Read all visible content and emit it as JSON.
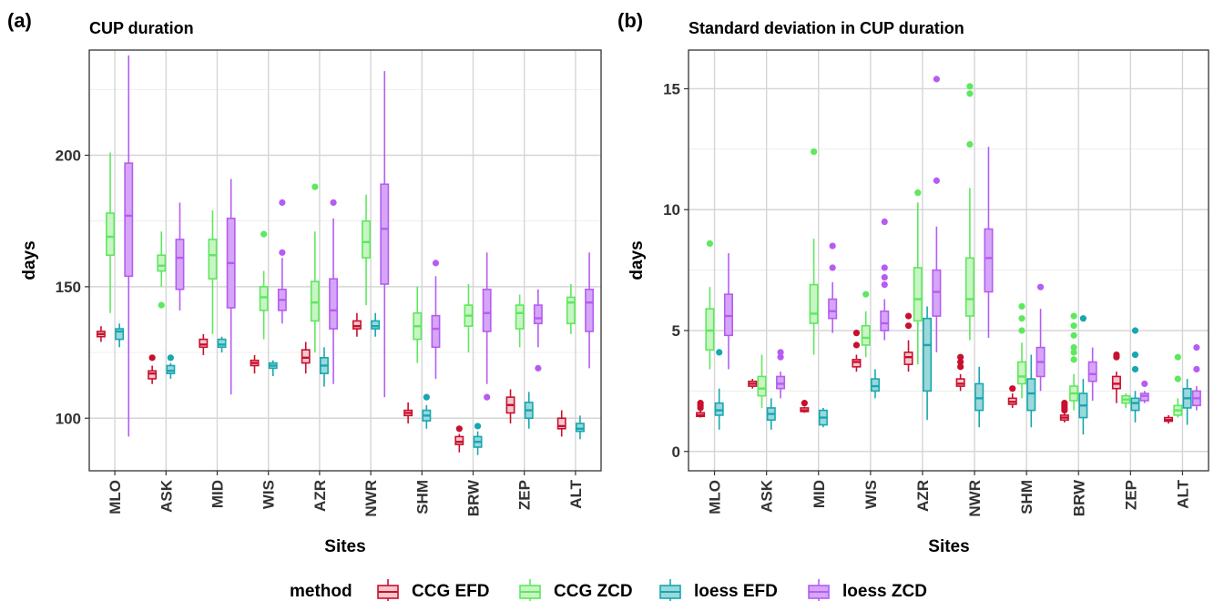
{
  "legend": {
    "title": "method",
    "items": [
      {
        "label": "CCG EFD",
        "stroke": "#c8102e",
        "fill": "#f3c7cd"
      },
      {
        "label": "CCG ZCD",
        "stroke": "#5ee85e",
        "fill": "#c8f5c3"
      },
      {
        "label": "loess EFD",
        "stroke": "#17a7b0",
        "fill": "#9ad8db"
      },
      {
        "label": "loess ZCD",
        "stroke": "#b65cf2",
        "fill": "#d5a6f7"
      }
    ]
  },
  "chart_data": [
    {
      "type": "box",
      "panel_label": "(a)",
      "title": "CUP duration",
      "xlabel": "Sites",
      "ylabel": "days",
      "ylim": [
        80,
        240
      ],
      "yticks": [
        100,
        150,
        200
      ],
      "grid": true,
      "categories": [
        "MLO",
        "ASK",
        "MID",
        "WIS",
        "AZR",
        "NWR",
        "SHM",
        "BRW",
        "ZEP",
        "ALT"
      ],
      "series": [
        {
          "name": "CCG EFD",
          "boxes": [
            {
              "min": 129,
              "q1": 131,
              "median": 132,
              "q3": 133,
              "max": 135,
              "outliers": []
            },
            {
              "min": 113,
              "q1": 115,
              "median": 117,
              "q3": 118,
              "max": 120,
              "outliers": [
                123
              ]
            },
            {
              "min": 124,
              "q1": 127,
              "median": 128,
              "q3": 130,
              "max": 132,
              "outliers": []
            },
            {
              "min": 117,
              "q1": 120,
              "median": 121,
              "q3": 122,
              "max": 124,
              "outliers": []
            },
            {
              "min": 117,
              "q1": 121,
              "median": 123,
              "q3": 126,
              "max": 129,
              "outliers": []
            },
            {
              "min": 131,
              "q1": 134,
              "median": 135,
              "q3": 137,
              "max": 140,
              "outliers": []
            },
            {
              "min": 98,
              "q1": 101,
              "median": 102,
              "q3": 103,
              "max": 106,
              "outliers": []
            },
            {
              "min": 87,
              "q1": 90,
              "median": 91,
              "q3": 93,
              "max": 94,
              "outliers": [
                96
              ]
            },
            {
              "min": 98,
              "q1": 102,
              "median": 105,
              "q3": 108,
              "max": 111,
              "outliers": []
            },
            {
              "min": 93,
              "q1": 96,
              "median": 97,
              "q3": 100,
              "max": 103,
              "outliers": []
            }
          ]
        },
        {
          "name": "CCG ZCD",
          "boxes": [
            {
              "min": 140,
              "q1": 162,
              "median": 169,
              "q3": 178,
              "max": 201,
              "outliers": []
            },
            {
              "min": 150,
              "q1": 156,
              "median": 158,
              "q3": 162,
              "max": 171,
              "outliers": [
                143
              ]
            },
            {
              "min": 132,
              "q1": 153,
              "median": 162,
              "q3": 168,
              "max": 179,
              "outliers": []
            },
            {
              "min": 130,
              "q1": 141,
              "median": 146,
              "q3": 150,
              "max": 156,
              "outliers": [
                170
              ]
            },
            {
              "min": 125,
              "q1": 137,
              "median": 144,
              "q3": 152,
              "max": 171,
              "outliers": [
                188
              ]
            },
            {
              "min": 143,
              "q1": 161,
              "median": 167,
              "q3": 175,
              "max": 185,
              "outliers": []
            },
            {
              "min": 121,
              "q1": 130,
              "median": 135,
              "q3": 140,
              "max": 150,
              "outliers": []
            },
            {
              "min": 125,
              "q1": 135,
              "median": 139,
              "q3": 143,
              "max": 151,
              "outliers": []
            },
            {
              "min": 127,
              "q1": 134,
              "median": 140,
              "q3": 143,
              "max": 147,
              "outliers": []
            },
            {
              "min": 132,
              "q1": 136,
              "median": 144,
              "q3": 146,
              "max": 151,
              "outliers": []
            }
          ]
        },
        {
          "name": "loess EFD",
          "boxes": [
            {
              "min": 127,
              "q1": 130,
              "median": 133,
              "q3": 134,
              "max": 136,
              "outliers": []
            },
            {
              "min": 115,
              "q1": 117,
              "median": 118,
              "q3": 120,
              "max": 121,
              "outliers": [
                123
              ]
            },
            {
              "min": 125,
              "q1": 127,
              "median": 128,
              "q3": 130,
              "max": 131,
              "outliers": []
            },
            {
              "min": 116,
              "q1": 119,
              "median": 120,
              "q3": 121,
              "max": 122,
              "outliers": []
            },
            {
              "min": 112,
              "q1": 117,
              "median": 120,
              "q3": 123,
              "max": 127,
              "outliers": []
            },
            {
              "min": 131,
              "q1": 134,
              "median": 135,
              "q3": 137,
              "max": 140,
              "outliers": []
            },
            {
              "min": 96,
              "q1": 99,
              "median": 101,
              "q3": 103,
              "max": 105,
              "outliers": [
                108
              ]
            },
            {
              "min": 86,
              "q1": 89,
              "median": 91,
              "q3": 93,
              "max": 95,
              "outliers": [
                97
              ]
            },
            {
              "min": 96,
              "q1": 100,
              "median": 103,
              "q3": 106,
              "max": 110,
              "outliers": []
            },
            {
              "min": 92,
              "q1": 95,
              "median": 96,
              "q3": 98,
              "max": 101,
              "outliers": []
            }
          ]
        },
        {
          "name": "loess ZCD",
          "boxes": [
            {
              "min": 93,
              "q1": 154,
              "median": 177,
              "q3": 197,
              "max": 238,
              "outliers": []
            },
            {
              "min": 141,
              "q1": 149,
              "median": 161,
              "q3": 168,
              "max": 182,
              "outliers": []
            },
            {
              "min": 109,
              "q1": 142,
              "median": 159,
              "q3": 176,
              "max": 191,
              "outliers": []
            },
            {
              "min": 136,
              "q1": 141,
              "median": 145,
              "q3": 149,
              "max": 161,
              "outliers": [
                163,
                182
              ]
            },
            {
              "min": 113,
              "q1": 134,
              "median": 141,
              "q3": 153,
              "max": 176,
              "outliers": [
                182
              ]
            },
            {
              "min": 108,
              "q1": 151,
              "median": 172,
              "q3": 189,
              "max": 232,
              "outliers": []
            },
            {
              "min": 115,
              "q1": 127,
              "median": 134,
              "q3": 139,
              "max": 154,
              "outliers": [
                159
              ]
            },
            {
              "min": 113,
              "q1": 133,
              "median": 140,
              "q3": 149,
              "max": 163,
              "outliers": [
                108
              ]
            },
            {
              "min": 127,
              "q1": 136,
              "median": 138,
              "q3": 143,
              "max": 149,
              "outliers": [
                119
              ]
            },
            {
              "min": 119,
              "q1": 133,
              "median": 144,
              "q3": 149,
              "max": 163,
              "outliers": []
            }
          ]
        }
      ]
    },
    {
      "type": "box",
      "panel_label": "(b)",
      "title": "Standard deviation in CUP duration",
      "xlabel": "Sites",
      "ylabel": "days",
      "ylim": [
        -0.8,
        16.6
      ],
      "yticks": [
        0,
        5,
        10,
        15
      ],
      "grid": true,
      "categories": [
        "MLO",
        "ASK",
        "MID",
        "WIS",
        "AZR",
        "NWR",
        "SHM",
        "BRW",
        "ZEP",
        "ALT"
      ],
      "series": [
        {
          "name": "CCG EFD",
          "boxes": [
            {
              "min": 1.4,
              "q1": 1.45,
              "median": 1.5,
              "q3": 1.6,
              "max": 1.7,
              "outliers": [
                1.8,
                1.9,
                2.0
              ]
            },
            {
              "min": 2.6,
              "q1": 2.7,
              "median": 2.8,
              "q3": 2.9,
              "max": 3.0,
              "outliers": []
            },
            {
              "min": 1.6,
              "q1": 1.65,
              "median": 1.7,
              "q3": 1.8,
              "max": 1.85,
              "outliers": [
                2.0
              ]
            },
            {
              "min": 3.3,
              "q1": 3.5,
              "median": 3.7,
              "q3": 3.8,
              "max": 4.0,
              "outliers": [
                4.4,
                4.9
              ]
            },
            {
              "min": 3.3,
              "q1": 3.6,
              "median": 3.9,
              "q3": 4.1,
              "max": 4.6,
              "outliers": [
                5.2,
                5.6
              ]
            },
            {
              "min": 2.5,
              "q1": 2.7,
              "median": 2.8,
              "q3": 3.0,
              "max": 3.2,
              "outliers": [
                3.5,
                3.7,
                3.9
              ]
            },
            {
              "min": 1.8,
              "q1": 1.95,
              "median": 2.05,
              "q3": 2.2,
              "max": 2.4,
              "outliers": [
                2.6
              ]
            },
            {
              "min": 1.2,
              "q1": 1.3,
              "median": 1.4,
              "q3": 1.5,
              "max": 1.6,
              "outliers": [
                1.7,
                1.8,
                1.9,
                2.0
              ]
            },
            {
              "min": 2.0,
              "q1": 2.6,
              "median": 2.8,
              "q3": 3.1,
              "max": 3.3,
              "outliers": [
                3.9,
                4.0
              ]
            },
            {
              "min": 1.15,
              "q1": 1.25,
              "median": 1.3,
              "q3": 1.4,
              "max": 1.5,
              "outliers": []
            }
          ]
        },
        {
          "name": "CCG ZCD",
          "boxes": [
            {
              "min": 3.4,
              "q1": 4.2,
              "median": 5.0,
              "q3": 5.9,
              "max": 6.8,
              "outliers": [
                8.6
              ]
            },
            {
              "min": 1.8,
              "q1": 2.3,
              "median": 2.6,
              "q3": 3.1,
              "max": 4.0,
              "outliers": []
            },
            {
              "min": 4.0,
              "q1": 5.3,
              "median": 5.7,
              "q3": 6.9,
              "max": 8.8,
              "outliers": [
                12.4
              ]
            },
            {
              "min": 3.9,
              "q1": 4.4,
              "median": 4.7,
              "q3": 5.2,
              "max": 5.8,
              "outliers": [
                6.5
              ]
            },
            {
              "min": 3.6,
              "q1": 5.4,
              "median": 6.3,
              "q3": 7.6,
              "max": 10.3,
              "outliers": [
                10.7
              ]
            },
            {
              "min": 4.6,
              "q1": 5.6,
              "median": 6.3,
              "q3": 8.0,
              "max": 10.9,
              "outliers": [
                12.7,
                14.8,
                15.1
              ]
            },
            {
              "min": 2.2,
              "q1": 2.8,
              "median": 3.1,
              "q3": 3.7,
              "max": 4.5,
              "outliers": [
                5.0,
                5.5,
                6.0
              ]
            },
            {
              "min": 1.7,
              "q1": 2.1,
              "median": 2.4,
              "q3": 2.7,
              "max": 3.2,
              "outliers": [
                3.8,
                4.1,
                4.3,
                4.8,
                5.2,
                5.6
              ]
            },
            {
              "min": 1.8,
              "q1": 2.0,
              "median": 2.15,
              "q3": 2.3,
              "max": 2.4,
              "outliers": []
            },
            {
              "min": 1.4,
              "q1": 1.5,
              "median": 1.7,
              "q3": 1.9,
              "max": 2.2,
              "outliers": [
                3.0,
                3.9
              ]
            }
          ]
        },
        {
          "name": "loess EFD",
          "boxes": [
            {
              "min": 0.9,
              "q1": 1.5,
              "median": 1.7,
              "q3": 2.0,
              "max": 2.6,
              "outliers": [
                4.1
              ]
            },
            {
              "min": 0.9,
              "q1": 1.3,
              "median": 1.55,
              "q3": 1.8,
              "max": 2.2,
              "outliers": []
            },
            {
              "min": 1.0,
              "q1": 1.1,
              "median": 1.4,
              "q3": 1.7,
              "max": 1.8,
              "outliers": []
            },
            {
              "min": 2.2,
              "q1": 2.5,
              "median": 2.7,
              "q3": 3.0,
              "max": 3.4,
              "outliers": []
            },
            {
              "min": 1.3,
              "q1": 2.5,
              "median": 4.4,
              "q3": 5.5,
              "max": 6.0,
              "outliers": []
            },
            {
              "min": 1.0,
              "q1": 1.7,
              "median": 2.2,
              "q3": 2.8,
              "max": 3.5,
              "outliers": []
            },
            {
              "min": 1.0,
              "q1": 1.7,
              "median": 2.4,
              "q3": 3.0,
              "max": 4.0,
              "outliers": []
            },
            {
              "min": 0.7,
              "q1": 1.4,
              "median": 1.9,
              "q3": 2.4,
              "max": 3.0,
              "outliers": [
                5.5
              ]
            },
            {
              "min": 1.2,
              "q1": 1.7,
              "median": 2.0,
              "q3": 2.2,
              "max": 2.5,
              "outliers": [
                3.4,
                4.0,
                5.0
              ]
            },
            {
              "min": 1.1,
              "q1": 1.8,
              "median": 2.2,
              "q3": 2.6,
              "max": 3.0,
              "outliers": []
            }
          ]
        },
        {
          "name": "loess ZCD",
          "boxes": [
            {
              "min": 3.4,
              "q1": 4.8,
              "median": 5.6,
              "q3": 6.5,
              "max": 8.2,
              "outliers": []
            },
            {
              "min": 2.2,
              "q1": 2.6,
              "median": 2.8,
              "q3": 3.1,
              "max": 3.3,
              "outliers": [
                3.9,
                4.1
              ]
            },
            {
              "min": 4.9,
              "q1": 5.5,
              "median": 5.8,
              "q3": 6.3,
              "max": 7.0,
              "outliers": [
                7.6,
                8.5
              ]
            },
            {
              "min": 4.6,
              "q1": 5.0,
              "median": 5.3,
              "q3": 5.8,
              "max": 6.3,
              "outliers": [
                6.9,
                7.2,
                7.6,
                9.5
              ]
            },
            {
              "min": 4.1,
              "q1": 5.6,
              "median": 6.6,
              "q3": 7.5,
              "max": 9.3,
              "outliers": [
                11.2,
                15.4
              ]
            },
            {
              "min": 4.7,
              "q1": 6.6,
              "median": 8.0,
              "q3": 9.2,
              "max": 12.6,
              "outliers": []
            },
            {
              "min": 2.5,
              "q1": 3.1,
              "median": 3.7,
              "q3": 4.3,
              "max": 5.9,
              "outliers": [
                6.8
              ]
            },
            {
              "min": 2.1,
              "q1": 2.9,
              "median": 3.2,
              "q3": 3.7,
              "max": 4.3,
              "outliers": []
            },
            {
              "min": 2.0,
              "q1": 2.1,
              "median": 2.3,
              "q3": 2.4,
              "max": 2.5,
              "outliers": [
                2.8
              ]
            },
            {
              "min": 1.7,
              "q1": 1.9,
              "median": 2.2,
              "q3": 2.5,
              "max": 2.7,
              "outliers": [
                3.4,
                4.3
              ]
            }
          ]
        }
      ]
    }
  ]
}
